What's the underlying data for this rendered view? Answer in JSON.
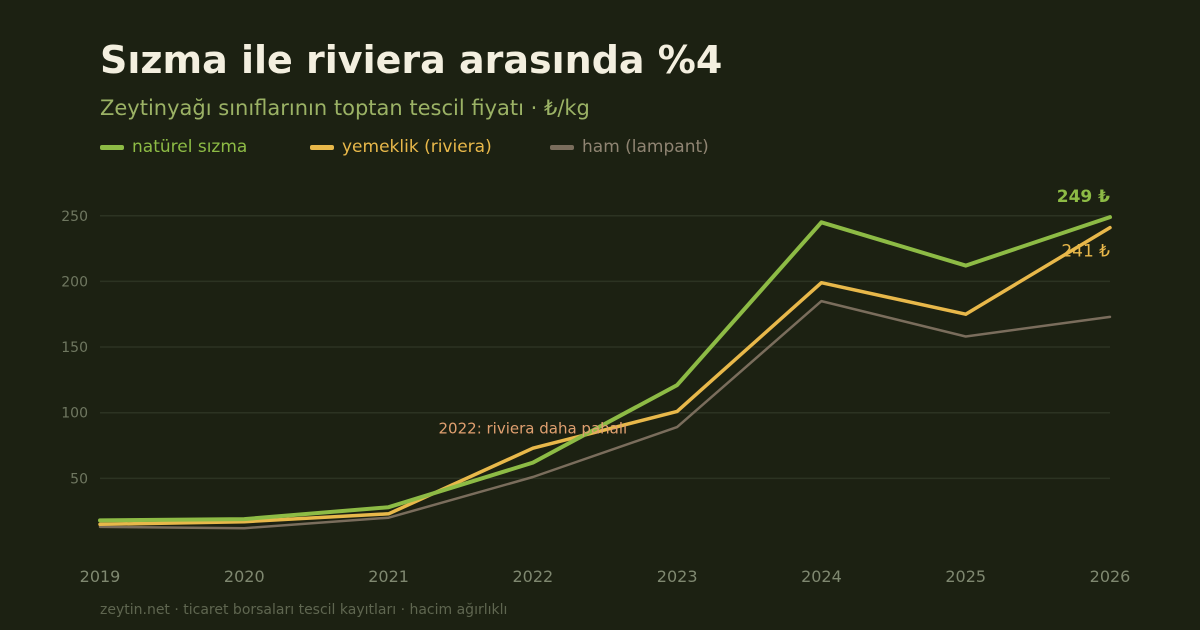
{
  "header": {
    "title": "Sızma ile riviera arasında %4",
    "subtitle": "Zeytinyağı sınıflarının toptan tescil fiyatı · ₺/kg"
  },
  "footer": {
    "source": "zeytin.net · ticaret borsaları tescil kayıtları · hacim ağırlıklı"
  },
  "chart_data": {
    "type": "line",
    "title": "Sızma ile riviera arasında %4",
    "subtitle": "Zeytinyağı sınıflarının toptan tescil fiyatı · ₺/kg",
    "x": [
      "2019",
      "2020",
      "2021",
      "2022",
      "2023",
      "2024",
      "2025",
      "2026"
    ],
    "ylim": [
      0,
      265
    ],
    "yticks": [
      50,
      100,
      150,
      200,
      250
    ],
    "grid": true,
    "legend_position": "top-left",
    "series": [
      {
        "name": "natürel sızma",
        "color": "#8dbb45",
        "values": [
          18,
          19,
          28,
          62,
          121,
          245,
          212,
          249
        ],
        "end_label": "249 ₺",
        "stroke": 4
      },
      {
        "name": "yemeklik (riviera)",
        "color": "#e8b84a",
        "values": [
          15,
          17,
          23,
          73,
          101,
          199,
          175,
          241
        ],
        "end_label": "241 ₺",
        "stroke": 3.5
      },
      {
        "name": "ham (lampant)",
        "color": "#7a6d5c",
        "values": [
          13,
          12,
          20,
          51,
          89,
          185,
          158,
          173
        ],
        "end_label": "",
        "stroke": 2.5
      }
    ],
    "annotations": [
      {
        "text": "2022: riviera daha pahalı",
        "x": "2022",
        "y": 88,
        "color": "#e0a070"
      }
    ]
  }
}
